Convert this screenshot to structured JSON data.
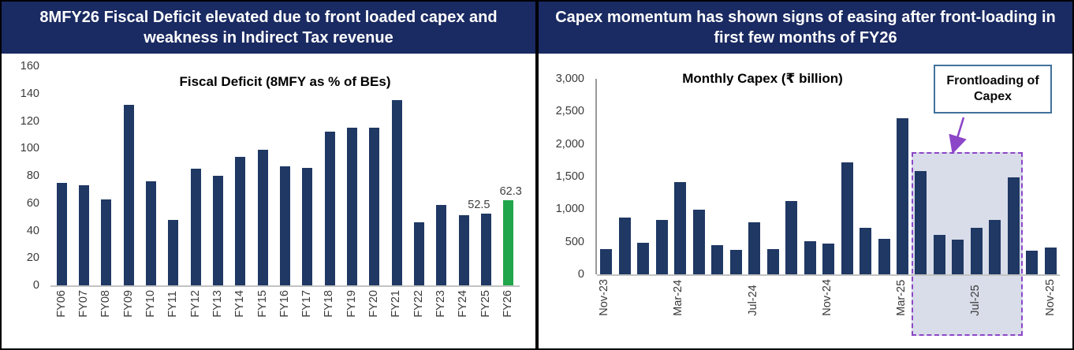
{
  "panels": [
    {
      "header": "8MFY26 Fiscal Deficit elevated due to front loaded capex and weakness in Indirect Tax revenue"
    },
    {
      "header": "Capex momentum has shown signs of easing after front-loading in first few months of FY26"
    }
  ],
  "chart_data": [
    {
      "type": "bar",
      "title": "Fiscal Deficit (8MFY as % of BEs)",
      "ylim": [
        0,
        160
      ],
      "ytick_labels": [
        "0",
        "20",
        "40",
        "60",
        "80",
        "100",
        "120",
        "140",
        "160"
      ],
      "categories": [
        "FY06",
        "FY07",
        "FY08",
        "FY09",
        "FY10",
        "FY11",
        "FY12",
        "FY13",
        "FY14",
        "FY15",
        "FY16",
        "FY17",
        "FY18",
        "FY19",
        "FY20",
        "FY21",
        "FY22",
        "FY23",
        "FY24",
        "FY25",
        "FY26"
      ],
      "values": [
        75,
        73,
        63,
        132,
        76,
        48,
        85,
        80,
        94,
        99,
        87,
        86,
        112,
        115,
        115,
        135,
        46,
        59,
        51,
        52.5,
        62.3
      ],
      "bar_color": "#1f3864",
      "highlight_bar": {
        "category": "FY26",
        "color": "#21a64b"
      },
      "data_labels": [
        {
          "category": "FY25",
          "text": "52.5",
          "dx": -9
        },
        {
          "category": "FY26",
          "text": "62.3",
          "dx": 3
        }
      ],
      "xtick_every": 1,
      "grid": false,
      "legend": "none"
    },
    {
      "type": "bar",
      "title": "Monthly Capex (₹ billion)",
      "ylim": [
        0,
        3000
      ],
      "ytick_labels": [
        "0",
        "500",
        "1,000",
        "1,500",
        "2,000",
        "2,500",
        "3,000"
      ],
      "categories": [
        "Nov-23",
        "Dec-23",
        "Jan-24",
        "Feb-24",
        "Mar-24",
        "Apr-24",
        "May-24",
        "Jun-24",
        "Jul-24",
        "Aug-24",
        "Sep-24",
        "Oct-24",
        "Nov-24",
        "Dec-24",
        "Jan-25",
        "Feb-25",
        "Mar-25",
        "Apr-25",
        "May-25",
        "Jun-25",
        "Jul-25",
        "Aug-25",
        "Sep-25",
        "Oct-25",
        "Nov-25"
      ],
      "values": [
        390,
        870,
        480,
        840,
        1420,
        990,
        450,
        380,
        800,
        390,
        1130,
        510,
        470,
        1720,
        710,
        550,
        2400,
        1590,
        610,
        530,
        710,
        840,
        1490,
        360,
        410
      ],
      "bar_color": "#1f3864",
      "xtick_every": 4,
      "grid": false,
      "legend": "none",
      "highlight_region": {
        "from": "Apr-25",
        "to": "Sep-25",
        "fill": "#d9dde9",
        "border": "#8c46c8"
      },
      "annotation": {
        "text": "Frontloading of Capex"
      }
    }
  ]
}
